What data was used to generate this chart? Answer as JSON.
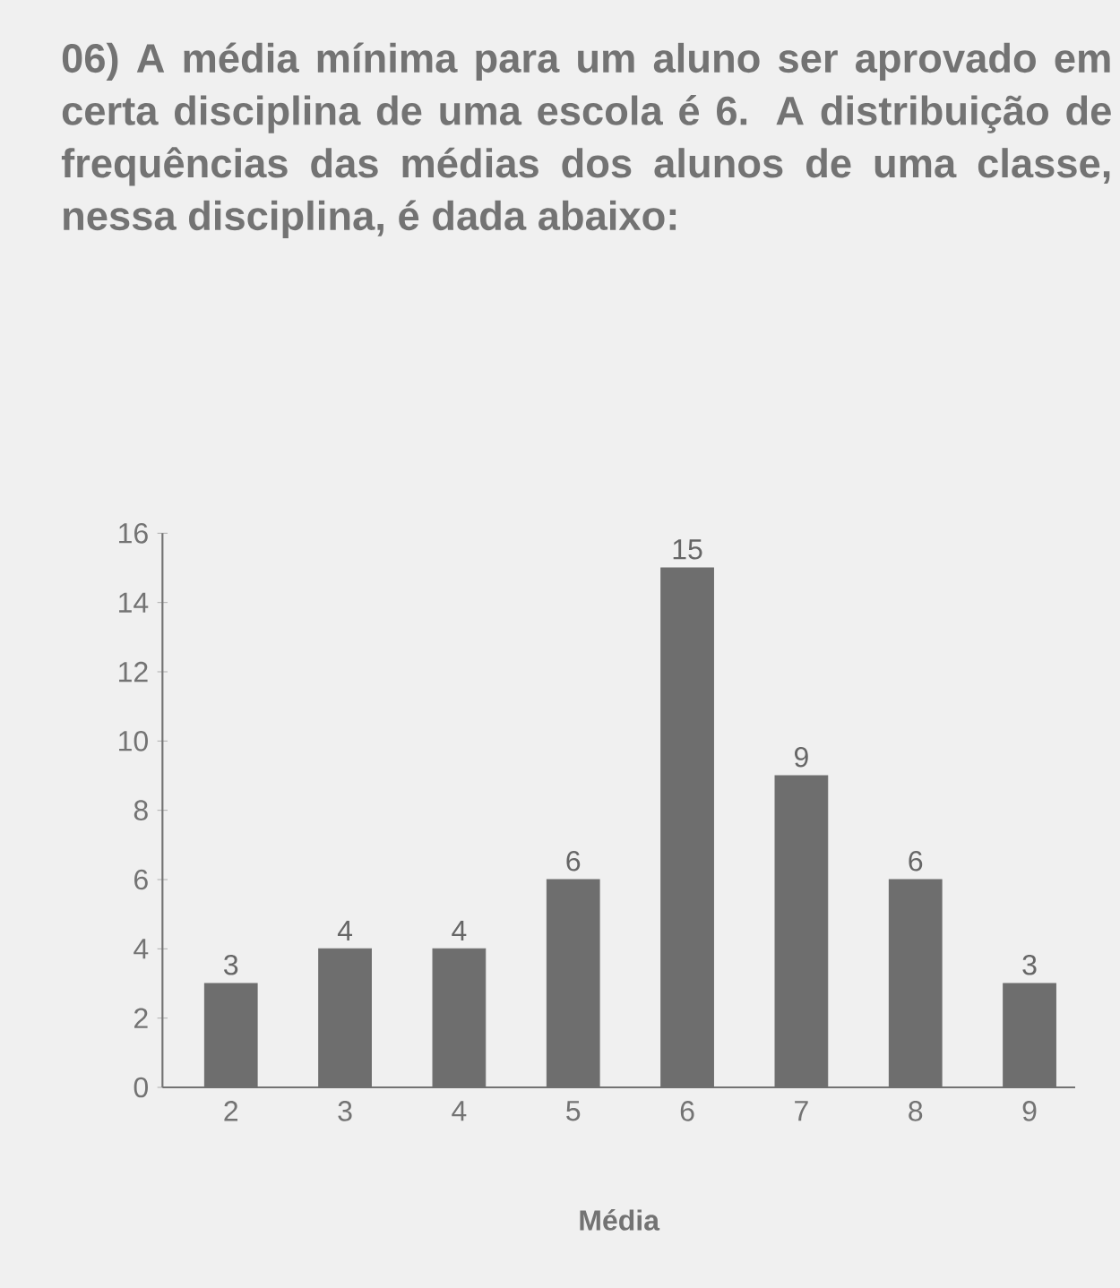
{
  "chart_data": {
    "type": "bar",
    "title": "06) A média mínima para um aluno ser aprovado em certa disciplina de uma escola é 6. A distribuição de frequências das médias dos alunos de uma classe, nessa disciplina, é dada abaixo:",
    "xlabel": "Média",
    "categories": [
      "2",
      "3",
      "4",
      "5",
      "6",
      "7",
      "8",
      "9"
    ],
    "values": [
      3,
      4,
      4,
      6,
      15,
      9,
      6,
      3
    ],
    "color": "#6e6e6e",
    "ylim": [
      0,
      16
    ],
    "yticks": [
      0,
      2,
      4,
      6,
      8,
      10,
      12,
      14,
      16
    ],
    "data_labels": true,
    "grid": false
  }
}
